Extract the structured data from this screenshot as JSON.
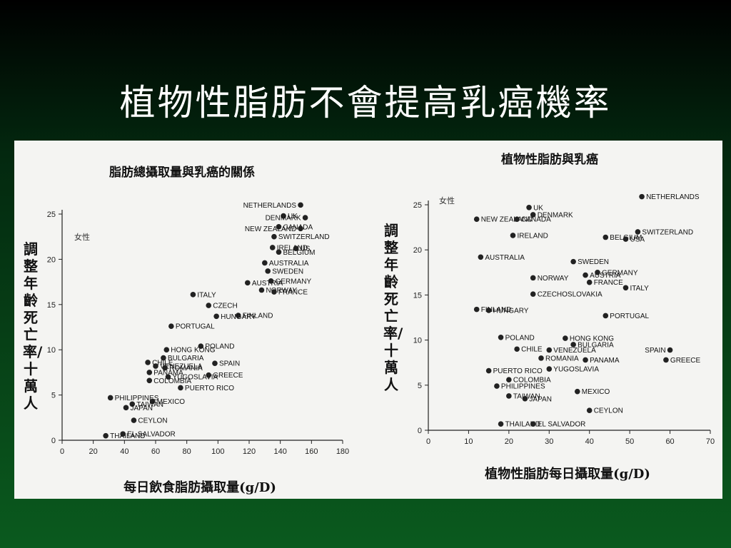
{
  "slide": {
    "title": "植物性脂肪不會提高乳癌機率"
  },
  "chart_data": [
    {
      "type": "scatter",
      "title": "脂肪總攝取量與乳癌的關係",
      "xlabel": "每日飲食脂肪攝取量(g/D)",
      "ylabel": "調整年齡死亡率/十萬人",
      "note": "女性",
      "xlim": [
        0,
        180
      ],
      "ylim": [
        0,
        25
      ],
      "xticks": [
        0,
        20,
        40,
        60,
        80,
        100,
        120,
        140,
        160,
        180
      ],
      "yticks": [
        0,
        5,
        10,
        15,
        20,
        25
      ],
      "points": [
        {
          "label": "NETHERLANDS",
          "x": 153,
          "y": 26
        },
        {
          "label": "UK",
          "x": 142,
          "y": 24.8
        },
        {
          "label": "DENMARK",
          "x": 156,
          "y": 24.6
        },
        {
          "label": "CANADA",
          "x": 139,
          "y": 23.6
        },
        {
          "label": "NEW ZEALAND",
          "x": 153,
          "y": 23.4
        },
        {
          "label": "SWITZERLAND",
          "x": 136,
          "y": 22.5
        },
        {
          "label": "IRELAND",
          "x": 135,
          "y": 21.3
        },
        {
          "label": "US",
          "x": 150,
          "y": 21.2
        },
        {
          "label": "BELGIUM",
          "x": 139,
          "y": 20.8
        },
        {
          "label": "AUSTRALIA",
          "x": 130,
          "y": 19.6
        },
        {
          "label": "SWEDEN",
          "x": 132,
          "y": 18.7
        },
        {
          "label": "AUSTRIA",
          "x": 119,
          "y": 17.4
        },
        {
          "label": "GERMANY",
          "x": 134,
          "y": 17.6
        },
        {
          "label": "NORWAY",
          "x": 128,
          "y": 16.6
        },
        {
          "label": "FRANCE",
          "x": 136,
          "y": 16.4
        },
        {
          "label": "ITALY",
          "x": 84,
          "y": 16.1
        },
        {
          "label": "CZECH",
          "x": 94,
          "y": 14.9
        },
        {
          "label": "FINLAND",
          "x": 113,
          "y": 13.8
        },
        {
          "label": "HUNGARY",
          "x": 99,
          "y": 13.7
        },
        {
          "label": "PORTUGAL",
          "x": 70,
          "y": 12.6
        },
        {
          "label": "POLAND",
          "x": 89,
          "y": 10.4
        },
        {
          "label": "HONG KONG",
          "x": 67,
          "y": 10
        },
        {
          "label": "CHILE",
          "x": 55,
          "y": 8.6
        },
        {
          "label": "BULGARIA",
          "x": 65,
          "y": 9.1
        },
        {
          "label": "SPAIN",
          "x": 98,
          "y": 8.5
        },
        {
          "label": "VENEZUELA",
          "x": 60,
          "y": 8.2
        },
        {
          "label": "ROMANIA",
          "x": 66,
          "y": 8
        },
        {
          "label": "PANAMA",
          "x": 56,
          "y": 7.5
        },
        {
          "label": "GREECE",
          "x": 94,
          "y": 7.2
        },
        {
          "label": "YUGOSLAVIA",
          "x": 68,
          "y": 7
        },
        {
          "label": "COLOMBIA",
          "x": 56,
          "y": 6.6
        },
        {
          "label": "PUERTO RICO",
          "x": 76,
          "y": 5.8
        },
        {
          "label": "PHILIPPINES",
          "x": 31,
          "y": 4.7
        },
        {
          "label": "MEXICO",
          "x": 58,
          "y": 4.3
        },
        {
          "label": "TAIWAN",
          "x": 45,
          "y": 4
        },
        {
          "label": "JAPAN",
          "x": 41,
          "y": 3.6
        },
        {
          "label": "CEYLON",
          "x": 46,
          "y": 2.2
        },
        {
          "label": "THAILAND",
          "x": 28,
          "y": 0.5
        },
        {
          "label": "EL SALVADOR",
          "x": 39,
          "y": 0.7
        }
      ]
    },
    {
      "type": "scatter",
      "title": "植物性脂肪與乳癌",
      "xlabel": "植物性脂肪每日攝取量(g/D)",
      "ylabel": "調整年齡死亡率/十萬人",
      "note": "女性",
      "xlim": [
        0,
        70
      ],
      "ylim": [
        0,
        25
      ],
      "xticks": [
        0,
        10,
        20,
        30,
        40,
        50,
        60,
        70
      ],
      "yticks": [
        0,
        5,
        10,
        15,
        20,
        25
      ],
      "points": [
        {
          "label": "NETHERLANDS",
          "x": 53,
          "y": 25.9
        },
        {
          "label": "UK",
          "x": 25,
          "y": 24.7
        },
        {
          "label": "DENMARK",
          "x": 26,
          "y": 23.9
        },
        {
          "label": "NEW ZEALAND",
          "x": 12,
          "y": 23.4
        },
        {
          "label": "CANADA",
          "x": 22,
          "y": 23.4
        },
        {
          "label": "SWITZERLAND",
          "x": 52,
          "y": 22
        },
        {
          "label": "IRELAND",
          "x": 21,
          "y": 21.6
        },
        {
          "label": "BELGIUM",
          "x": 44,
          "y": 21.4
        },
        {
          "label": "USA",
          "x": 49,
          "y": 21.2
        },
        {
          "label": "AUSTRALIA",
          "x": 13,
          "y": 19.2
        },
        {
          "label": "SWEDEN",
          "x": 36,
          "y": 18.7
        },
        {
          "label": "NORWAY",
          "x": 26,
          "y": 16.9
        },
        {
          "label": "AUSTRIA",
          "x": 39,
          "y": 17.2
        },
        {
          "label": "GERMANY",
          "x": 42,
          "y": 17.5
        },
        {
          "label": "FRANCE",
          "x": 40,
          "y": 16.4
        },
        {
          "label": "ITALY",
          "x": 49,
          "y": 15.8
        },
        {
          "label": "CZECHOSLOVAKIA",
          "x": 26,
          "y": 15.1
        },
        {
          "label": "FINLAND",
          "x": 12,
          "y": 13.4
        },
        {
          "label": "HUNGARY",
          "x": 15,
          "y": 13.3
        },
        {
          "label": "PORTUGAL",
          "x": 44,
          "y": 12.7
        },
        {
          "label": "POLAND",
          "x": 18,
          "y": 10.3
        },
        {
          "label": "HONG KONG",
          "x": 34,
          "y": 10.2
        },
        {
          "label": "BULGARIA",
          "x": 36,
          "y": 9.5
        },
        {
          "label": "CHILE",
          "x": 22,
          "y": 9
        },
        {
          "label": "VENEZUELA",
          "x": 30,
          "y": 8.9
        },
        {
          "label": "SPAIN",
          "x": 60,
          "y": 8.9
        },
        {
          "label": "ROMANIA",
          "x": 28,
          "y": 8
        },
        {
          "label": "PANAMA",
          "x": 39,
          "y": 7.8
        },
        {
          "label": "GREECE",
          "x": 59,
          "y": 7.8
        },
        {
          "label": "PUERTO RICO",
          "x": 15,
          "y": 6.6
        },
        {
          "label": "YUGOSLAVIA",
          "x": 30,
          "y": 6.8
        },
        {
          "label": "COLOMBIA",
          "x": 20,
          "y": 5.6
        },
        {
          "label": "PHILIPPINES",
          "x": 17,
          "y": 4.9
        },
        {
          "label": "MEXICO",
          "x": 37,
          "y": 4.3
        },
        {
          "label": "TAIWAN",
          "x": 20,
          "y": 3.8
        },
        {
          "label": "JAPAN",
          "x": 24,
          "y": 3.5
        },
        {
          "label": "CEYLON",
          "x": 40,
          "y": 2.2
        },
        {
          "label": "THAILAND",
          "x": 18,
          "y": 0.7
        },
        {
          "label": "EL SALVADOR",
          "x": 26,
          "y": 0.7
        }
      ]
    }
  ]
}
